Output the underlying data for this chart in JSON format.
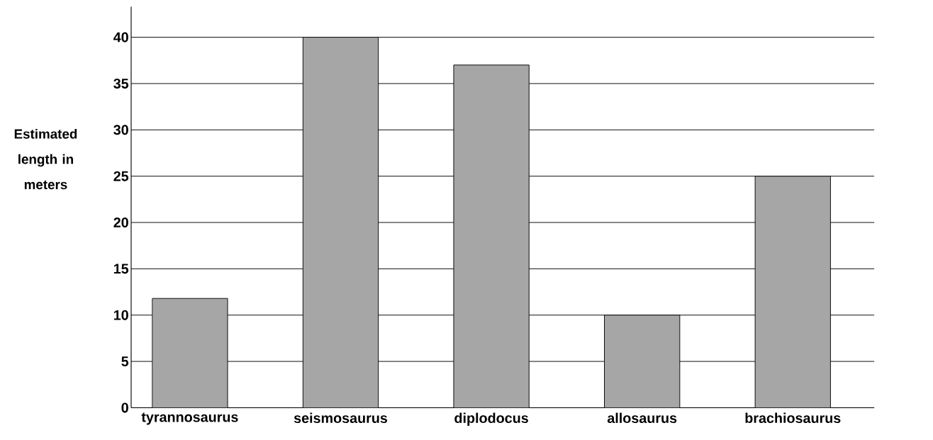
{
  "chart_data": {
    "type": "bar",
    "ylabel": "Estimated length in meters",
    "categories": [
      "tyrannosaurus",
      "seismosaurus",
      "diplodocus",
      "allosaurus",
      "brachiosaurus"
    ],
    "values": [
      11.8,
      40,
      37,
      10,
      25
    ],
    "color": "#a6a6a6",
    "ylim": [
      0,
      43.3
    ],
    "yticks": [
      0,
      5,
      10,
      15,
      20,
      25,
      30,
      35,
      40
    ],
    "grid": "y"
  }
}
